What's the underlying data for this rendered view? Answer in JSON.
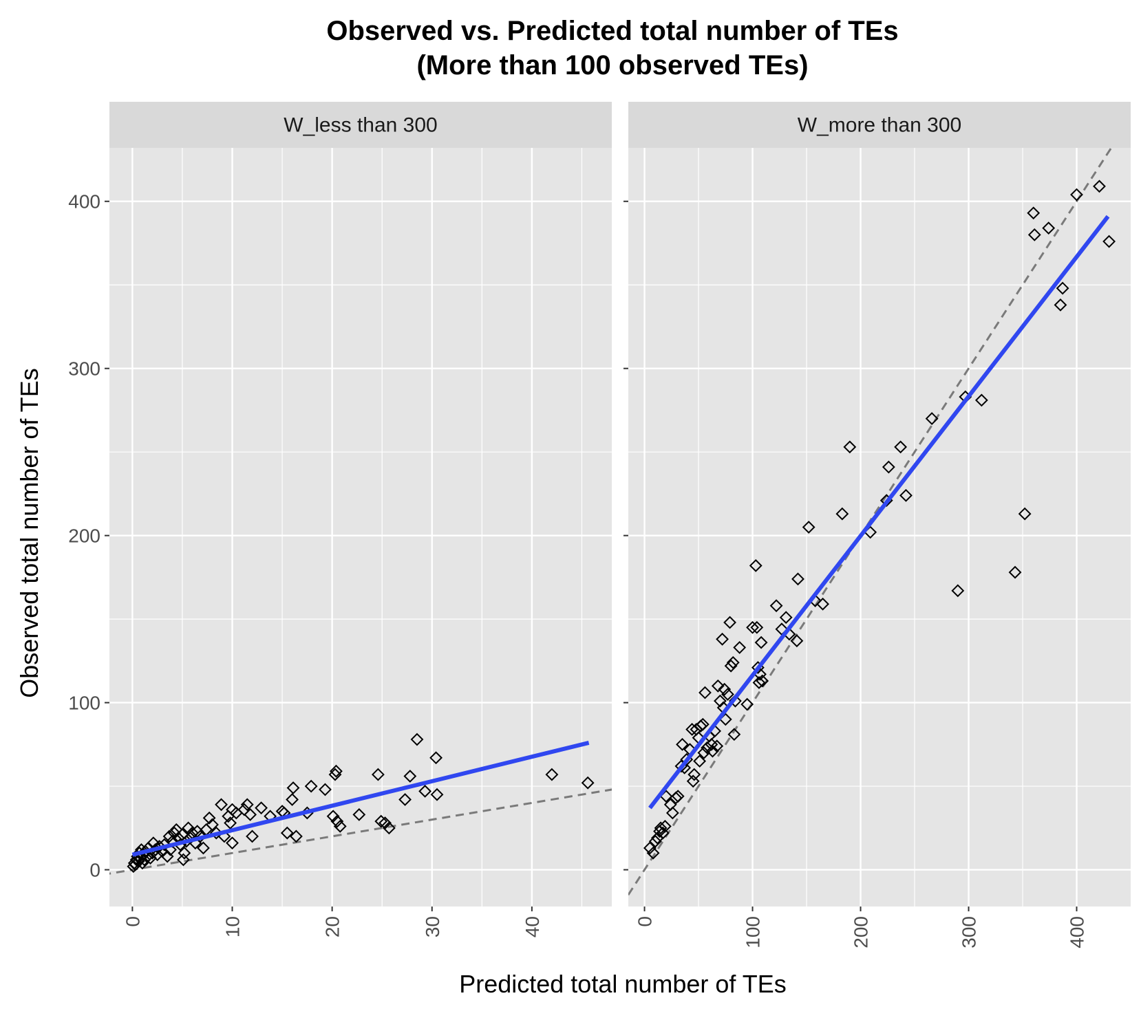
{
  "chart_data": {
    "type": "scatter",
    "title": "Observed vs. Predicted total number of TEs",
    "subtitle": "(More than 100 observed TEs)",
    "xlabel": "Predicted total number of TEs",
    "ylabel": "Observed total number of TEs",
    "y_ticks": [
      "0",
      "100",
      "200",
      "300",
      "400"
    ],
    "ylim": [
      -22,
      432
    ],
    "grid": true,
    "reference_line": "y = x (dashed)",
    "fit_line": "linear (blue)",
    "colors": {
      "panel_bg": "#e5e5e5",
      "strip_bg": "#d9d9d9",
      "grid": "#ffffff",
      "points": "#000000",
      "fit": "#3047f0",
      "reference": "#7a7a7a"
    },
    "panels": [
      {
        "strip": "W_less than 300",
        "x_ticks": [
          "0",
          "10",
          "20",
          "30",
          "40"
        ],
        "xlim": [
          -2.3,
          48
        ],
        "fit": {
          "x": [
            0,
            45.7
          ],
          "y": [
            9,
            76
          ]
        },
        "points": [
          [
            0.1,
            2
          ],
          [
            0.2,
            4
          ],
          [
            0.3,
            3
          ],
          [
            0.4,
            6
          ],
          [
            0.5,
            8
          ],
          [
            0.6,
            5
          ],
          [
            0.7,
            10
          ],
          [
            0.8,
            7
          ],
          [
            0.9,
            12
          ],
          [
            1.0,
            4
          ],
          [
            1.1,
            9
          ],
          [
            1.2,
            6
          ],
          [
            1.3,
            11
          ],
          [
            1.5,
            8
          ],
          [
            1.6,
            13
          ],
          [
            1.8,
            7
          ],
          [
            2.0,
            10
          ],
          [
            2.1,
            16
          ],
          [
            2.3,
            12
          ],
          [
            2.5,
            9
          ],
          [
            2.7,
            14
          ],
          [
            3.0,
            11
          ],
          [
            3.2,
            15
          ],
          [
            3.5,
            8
          ],
          [
            3.7,
            20
          ],
          [
            3.8,
            12
          ],
          [
            4.0,
            17
          ],
          [
            4.2,
            22
          ],
          [
            4.4,
            24
          ],
          [
            4.6,
            19
          ],
          [
            4.8,
            15
          ],
          [
            5.0,
            21
          ],
          [
            5.1,
            6
          ],
          [
            5.2,
            10
          ],
          [
            5.4,
            17
          ],
          [
            5.6,
            25
          ],
          [
            5.8,
            19
          ],
          [
            6.0,
            22
          ],
          [
            6.3,
            16
          ],
          [
            6.5,
            23
          ],
          [
            6.8,
            20
          ],
          [
            7.1,
            13
          ],
          [
            7.4,
            24
          ],
          [
            7.7,
            31
          ],
          [
            8.0,
            27
          ],
          [
            8.4,
            22
          ],
          [
            8.9,
            39
          ],
          [
            9.2,
            20
          ],
          [
            9.6,
            32
          ],
          [
            9.8,
            28
          ],
          [
            10.0,
            16
          ],
          [
            10.0,
            36
          ],
          [
            10.4,
            34
          ],
          [
            11.2,
            36
          ],
          [
            11.5,
            39
          ],
          [
            11.8,
            33
          ],
          [
            12.0,
            20
          ],
          [
            12.9,
            37
          ],
          [
            13.8,
            32
          ],
          [
            15.0,
            35
          ],
          [
            15.2,
            34
          ],
          [
            15.5,
            22
          ],
          [
            16.0,
            42
          ],
          [
            16.1,
            49
          ],
          [
            16.4,
            20
          ],
          [
            17.5,
            34
          ],
          [
            17.9,
            50
          ],
          [
            19.3,
            48
          ],
          [
            20.1,
            32
          ],
          [
            20.3,
            57
          ],
          [
            20.4,
            59
          ],
          [
            20.5,
            29
          ],
          [
            20.8,
            26
          ],
          [
            22.7,
            33
          ],
          [
            24.6,
            57
          ],
          [
            24.9,
            29
          ],
          [
            25.3,
            28
          ],
          [
            25.7,
            25
          ],
          [
            27.3,
            42
          ],
          [
            27.8,
            56
          ],
          [
            28.5,
            78
          ],
          [
            29.3,
            47
          ],
          [
            30.4,
            67
          ],
          [
            30.5,
            45
          ],
          [
            42.0,
            57
          ],
          [
            45.6,
            52
          ]
        ]
      },
      {
        "strip": "W_more than 300",
        "x_ticks": [
          "0",
          "100",
          "200",
          "300",
          "400"
        ],
        "xlim": [
          -15,
          450
        ],
        "fit": {
          "x": [
            5,
            429
          ],
          "y": [
            37,
            391
          ]
        },
        "points": [
          [
            5,
            13
          ],
          [
            8,
            10
          ],
          [
            10,
            17
          ],
          [
            12,
            19
          ],
          [
            14,
            23
          ],
          [
            15,
            25
          ],
          [
            17,
            22
          ],
          [
            19,
            26
          ],
          [
            20,
            44
          ],
          [
            24,
            39
          ],
          [
            26,
            34
          ],
          [
            29,
            43
          ],
          [
            31,
            44
          ],
          [
            34,
            62
          ],
          [
            35,
            75
          ],
          [
            37,
            61
          ],
          [
            39,
            66
          ],
          [
            42,
            72
          ],
          [
            44,
            84
          ],
          [
            45,
            53
          ],
          [
            46,
            57
          ],
          [
            48,
            84
          ],
          [
            50,
            79
          ],
          [
            51,
            65
          ],
          [
            52,
            86
          ],
          [
            54,
            87
          ],
          [
            55,
            70
          ],
          [
            56,
            106
          ],
          [
            58,
            73
          ],
          [
            60,
            80
          ],
          [
            62,
            75
          ],
          [
            63,
            71
          ],
          [
            65,
            83
          ],
          [
            67,
            74
          ],
          [
            68,
            110
          ],
          [
            70,
            101
          ],
          [
            72,
            138
          ],
          [
            73,
            97
          ],
          [
            74,
            108
          ],
          [
            75,
            90
          ],
          [
            77,
            105
          ],
          [
            79,
            148
          ],
          [
            80,
            122
          ],
          [
            82,
            124
          ],
          [
            83,
            81
          ],
          [
            84,
            101
          ],
          [
            88,
            133
          ],
          [
            95,
            99
          ],
          [
            100,
            145
          ],
          [
            103,
            182
          ],
          [
            104,
            145
          ],
          [
            105,
            121
          ],
          [
            106,
            112
          ],
          [
            107,
            117
          ],
          [
            108,
            136
          ],
          [
            109,
            113
          ],
          [
            122,
            158
          ],
          [
            127,
            144
          ],
          [
            131,
            151
          ],
          [
            134,
            141
          ],
          [
            141,
            137
          ],
          [
            142,
            174
          ],
          [
            152,
            205
          ],
          [
            158,
            161
          ],
          [
            165,
            159
          ],
          [
            183,
            213
          ],
          [
            190,
            253
          ],
          [
            209,
            202
          ],
          [
            224,
            221
          ],
          [
            226,
            241
          ],
          [
            237,
            253
          ],
          [
            242,
            224
          ],
          [
            266,
            270
          ],
          [
            290,
            167
          ],
          [
            297,
            283
          ],
          [
            312,
            281
          ],
          [
            343,
            178
          ],
          [
            352,
            213
          ],
          [
            360,
            393
          ],
          [
            361,
            380
          ],
          [
            374,
            384
          ],
          [
            385,
            338
          ],
          [
            387,
            348
          ],
          [
            400,
            404
          ],
          [
            421,
            409
          ],
          [
            430,
            376
          ]
        ]
      }
    ]
  }
}
